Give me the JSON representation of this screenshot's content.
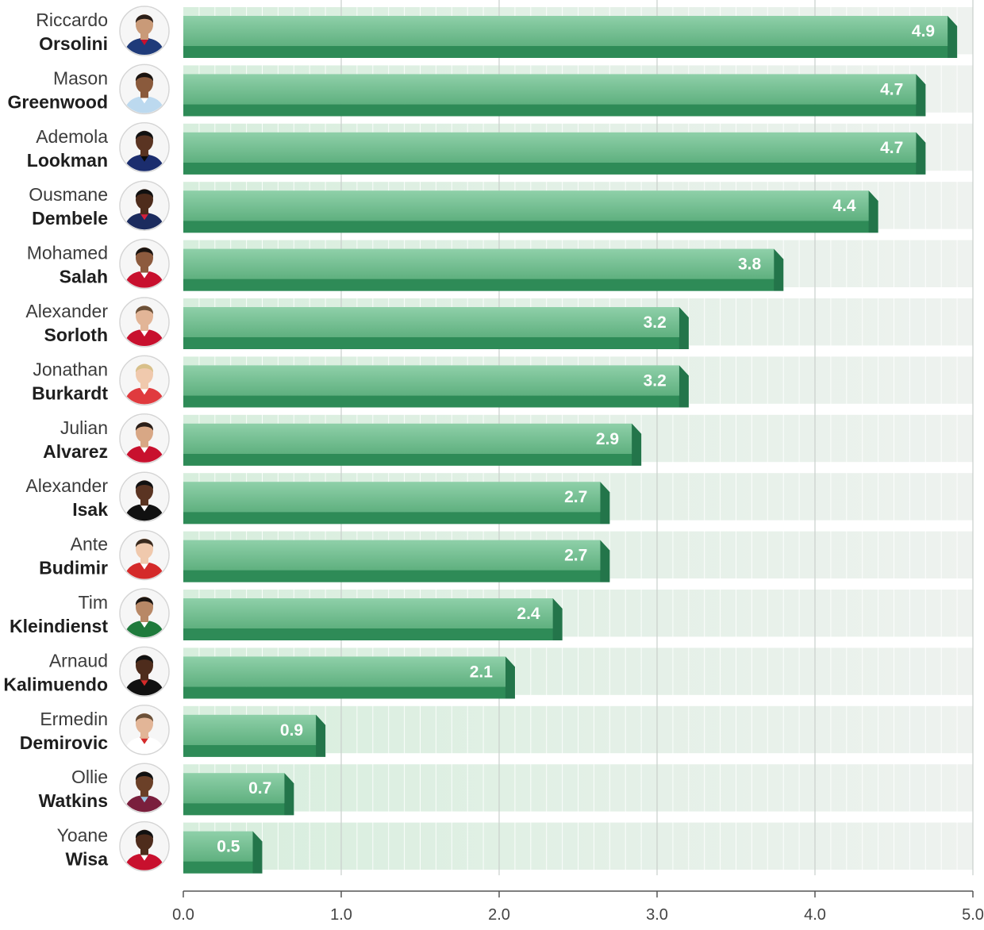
{
  "chart_data": {
    "type": "bar",
    "orientation": "horizontal",
    "title": "",
    "xlabel": "",
    "ylabel": "",
    "xlim": [
      0,
      5
    ],
    "x_ticks": [
      "0.0",
      "1.0",
      "2.0",
      "3.0",
      "4.0",
      "5.0"
    ],
    "grid": true,
    "bar_color": "#2e8b57",
    "players": [
      {
        "first": "Riccardo",
        "last": "Orsolini",
        "value": 4.9,
        "value_label": "4.9",
        "kit": [
          "#1f3b7a",
          "#c8102e"
        ],
        "skin": "#c99a78",
        "hair": "#2a1e18"
      },
      {
        "first": "Mason",
        "last": "Greenwood",
        "value": 4.7,
        "value_label": "4.7",
        "kit": [
          "#bcd9ef",
          "#ffffff"
        ],
        "skin": "#8a5a3c",
        "hair": "#1a1410"
      },
      {
        "first": "Ademola",
        "last": "Lookman",
        "value": 4.7,
        "value_label": "4.7",
        "kit": [
          "#1b2d6e",
          "#0a0a0a"
        ],
        "skin": "#5a3422",
        "hair": "#111111"
      },
      {
        "first": "Ousmane",
        "last": "Dembele",
        "value": 4.4,
        "value_label": "4.4",
        "kit": [
          "#1b2b5e",
          "#d4213d"
        ],
        "skin": "#4e2c1c",
        "hair": "#111111"
      },
      {
        "first": "Mohamed",
        "last": "Salah",
        "value": 3.8,
        "value_label": "3.8",
        "kit": [
          "#c8102e",
          "#ffffff"
        ],
        "skin": "#8d5b3e",
        "hair": "#1a1410"
      },
      {
        "first": "Alexander",
        "last": "Sorloth",
        "value": 3.2,
        "value_label": "3.2",
        "kit": [
          "#c8102e",
          "#ffffff"
        ],
        "skin": "#e2b597",
        "hair": "#6b5038"
      },
      {
        "first": "Jonathan",
        "last": "Burkardt",
        "value": 3.2,
        "value_label": "3.2",
        "kit": [
          "#e03a3e",
          "#ffffff"
        ],
        "skin": "#f0c9ad",
        "hair": "#d8c08a"
      },
      {
        "first": "Julian",
        "last": "Alvarez",
        "value": 2.9,
        "value_label": "2.9",
        "kit": [
          "#c8102e",
          "#ffffff"
        ],
        "skin": "#d8a785",
        "hair": "#2a1e18"
      },
      {
        "first": "Alexander",
        "last": "Isak",
        "value": 2.7,
        "value_label": "2.7",
        "kit": [
          "#111111",
          "#ffffff"
        ],
        "skin": "#5a3422",
        "hair": "#111111"
      },
      {
        "first": "Ante",
        "last": "Budimir",
        "value": 2.7,
        "value_label": "2.7",
        "kit": [
          "#d42a2a",
          "#ffffff"
        ],
        "skin": "#f0c9ad",
        "hair": "#3a2a1e"
      },
      {
        "first": "Tim",
        "last": "Kleindienst",
        "value": 2.4,
        "value_label": "2.4",
        "kit": [
          "#1f7a3c",
          "#ffffff"
        ],
        "skin": "#b88866",
        "hair": "#1a1410"
      },
      {
        "first": "Arnaud",
        "last": "Kalimuendo",
        "value": 2.1,
        "value_label": "2.1",
        "kit": [
          "#111111",
          "#d42a2a"
        ],
        "skin": "#4e2c1c",
        "hair": "#111111"
      },
      {
        "first": "Ermedin",
        "last": "Demirovic",
        "value": 0.9,
        "value_label": "0.9",
        "kit": [
          "#ffffff",
          "#d42a2a"
        ],
        "skin": "#e2b597",
        "hair": "#6b5038"
      },
      {
        "first": "Ollie",
        "last": "Watkins",
        "value": 0.7,
        "value_label": "0.7",
        "kit": [
          "#7a1f3d",
          "#9bc4e2"
        ],
        "skin": "#6b4028",
        "hair": "#111111"
      },
      {
        "first": "Yoane",
        "last": "Wisa",
        "value": 0.5,
        "value_label": "0.5",
        "kit": [
          "#c8102e",
          "#ffffff"
        ],
        "skin": "#4e2c1c",
        "hair": "#111111"
      }
    ]
  }
}
